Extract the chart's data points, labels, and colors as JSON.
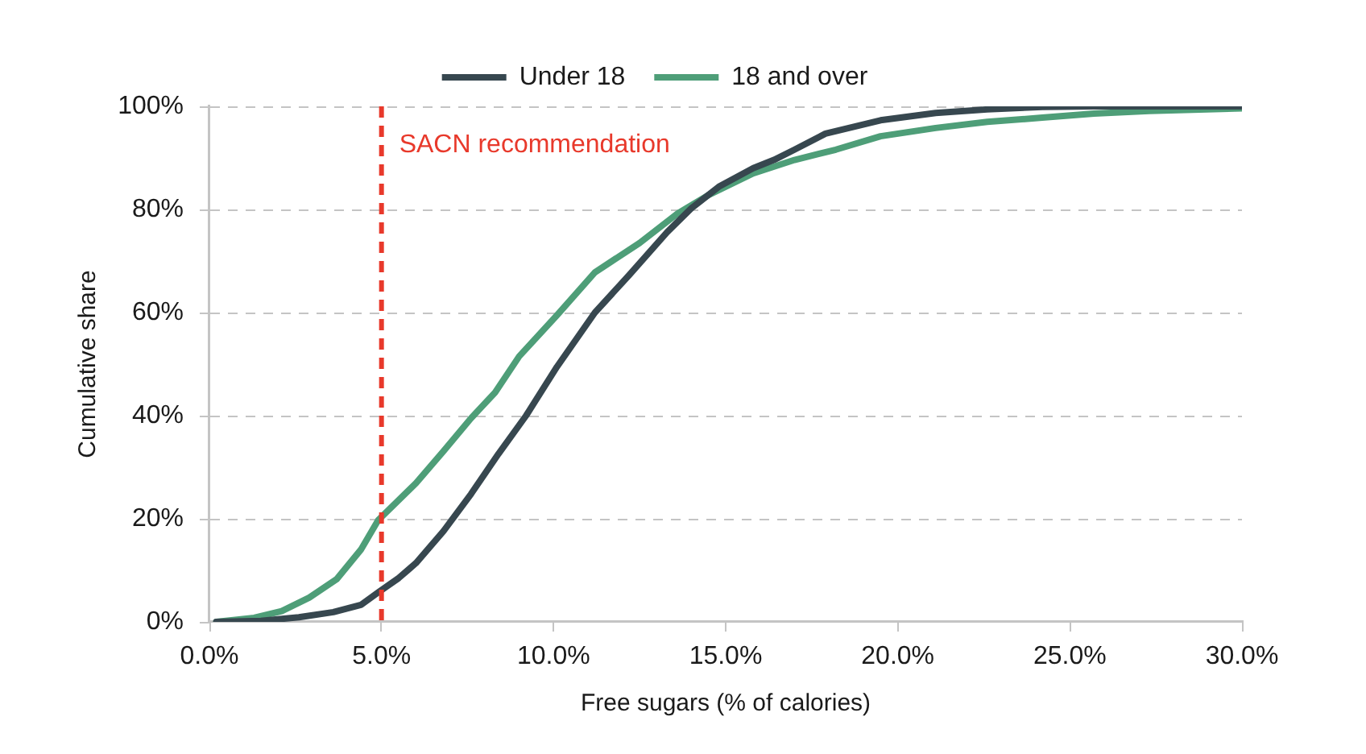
{
  "chart_data": {
    "type": "line",
    "xlabel": "Free sugars (% of calories)",
    "ylabel": "Cumulative share",
    "xlim": [
      0,
      30
    ],
    "xticks": [
      {
        "value": 0,
        "label": "0.0%"
      },
      {
        "value": 5,
        "label": "5.0%"
      },
      {
        "value": 10,
        "label": "10.0%"
      },
      {
        "value": 15,
        "label": "15.0%"
      },
      {
        "value": 20,
        "label": "20.0%"
      },
      {
        "value": 25,
        "label": "25.0%"
      },
      {
        "value": 30,
        "label": "30.0%"
      }
    ],
    "ylim": [
      0,
      100
    ],
    "yticks": [
      {
        "value": 0,
        "label": "0%"
      },
      {
        "value": 20,
        "label": "20%"
      },
      {
        "value": 40,
        "label": "40%"
      },
      {
        "value": 60,
        "label": "60%"
      },
      {
        "value": 80,
        "label": "80%"
      },
      {
        "value": 100,
        "label": "100%"
      }
    ],
    "grid": "y",
    "legend": "top",
    "marker": "none",
    "line_style": "solid",
    "ref_lines": [
      {
        "axis": "x",
        "value": 5,
        "label": "SACN recommendation",
        "color": "#e8392b",
        "line_style": "dashed"
      }
    ],
    "series": [
      {
        "name": "Under 18",
        "color": "#37474f",
        "x": [
          0.2,
          1.5,
          2.6,
          3.6,
          4.4,
          4.9,
          5.5,
          6.0,
          6.8,
          7.6,
          8.4,
          9.2,
          10.1,
          11.2,
          12.2,
          13.3,
          14.0,
          14.8,
          15.8,
          16.4,
          17.0,
          17.9,
          19.5,
          21.1,
          22.6,
          24.2,
          25.7,
          30.0
        ],
        "values": [
          0,
          0.2,
          0.9,
          1.9,
          3.3,
          5.7,
          8.5,
          11.4,
          17.6,
          24.8,
          32.6,
          40.0,
          49.5,
          60.0,
          67.3,
          75.6,
          80.2,
          84.4,
          88.0,
          89.6,
          91.6,
          94.7,
          97.3,
          98.7,
          99.4,
          99.9,
          100,
          100
        ]
      },
      {
        "name": "18 and over",
        "color": "#4e9e78",
        "x": [
          0.2,
          1.3,
          2.1,
          2.9,
          3.7,
          4.4,
          4.9,
          6.0,
          6.8,
          7.6,
          8.3,
          9.0,
          10.1,
          11.2,
          12.5,
          13.6,
          14.5,
          15.8,
          17.0,
          18.2,
          19.5,
          21.1,
          22.6,
          24.2,
          25.7,
          27.3,
          30.0
        ],
        "values": [
          0,
          0.8,
          2.1,
          4.7,
          8.3,
          14.0,
          19.7,
          26.9,
          33.1,
          39.5,
          44.5,
          51.5,
          59.5,
          67.8,
          73.5,
          79.2,
          82.8,
          87.0,
          89.6,
          91.6,
          94.2,
          95.8,
          97.0,
          97.8,
          98.6,
          99.1,
          99.6
        ]
      }
    ]
  }
}
